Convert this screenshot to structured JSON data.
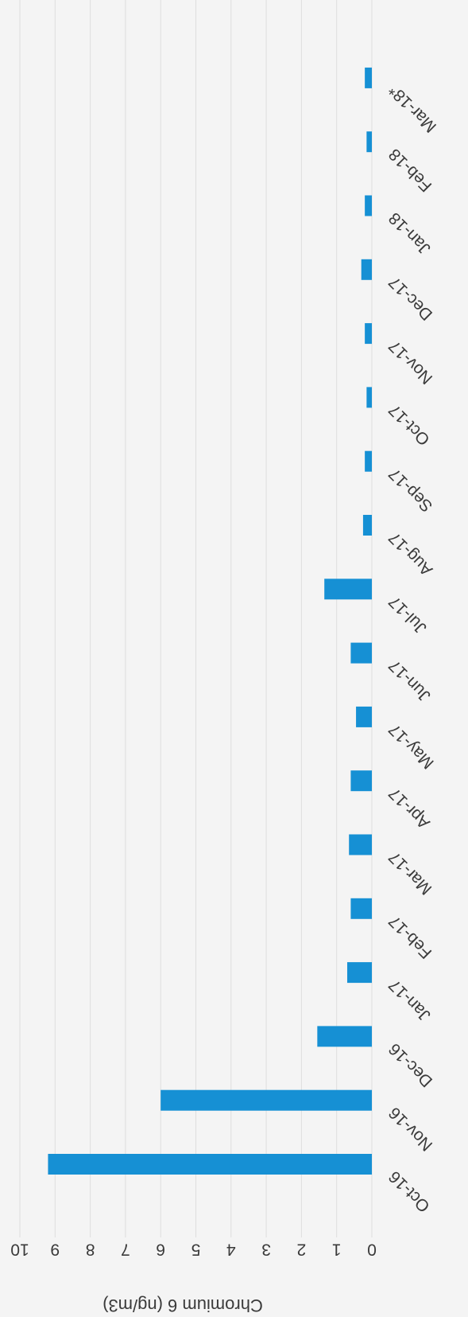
{
  "chart_data": {
    "type": "bar",
    "orientation": "horizontal",
    "categories": [
      "Oct-16",
      "Nov-16",
      "Dec-16",
      "Jan-17",
      "Feb-17",
      "Mar-17",
      "Apr-17",
      "May-17",
      "Jun-17",
      "Jul-17",
      "Aug-17",
      "Sep-17",
      "Oct-17",
      "Nov-17",
      "Dec-17",
      "Jan-18",
      "Feb-18",
      "Mar-18*"
    ],
    "values": [
      9.2,
      6.0,
      1.55,
      0.7,
      0.6,
      0.65,
      0.6,
      0.45,
      0.6,
      1.35,
      0.25,
      0.2,
      0.15,
      0.2,
      0.3,
      0.2,
      0.15,
      0.2
    ],
    "xlim": [
      0,
      10
    ],
    "ticks": [
      0,
      1,
      2,
      3,
      4,
      5,
      6,
      7,
      8,
      9,
      10
    ],
    "axis_title": "Chromium 6 (ng/m3)",
    "bar_color": "#1690d4",
    "grid": true
  }
}
